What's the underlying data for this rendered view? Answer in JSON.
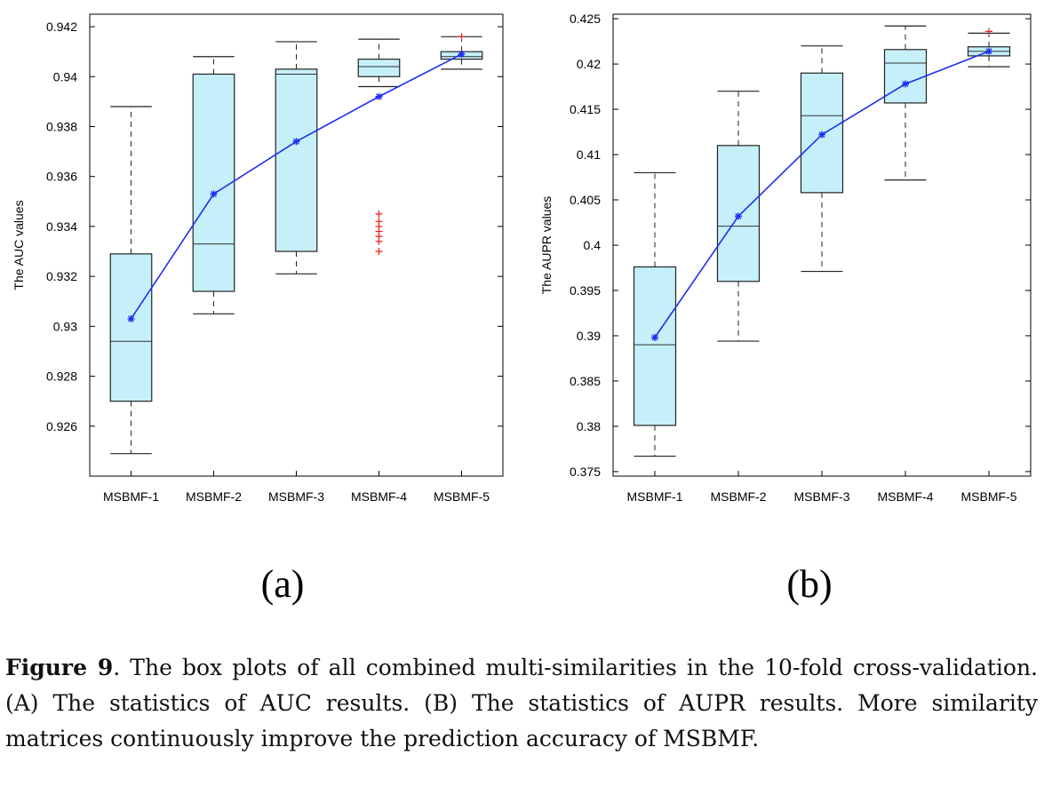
{
  "chart_data": [
    {
      "type": "box",
      "ylabel": "The AUC values",
      "categories": [
        "MSBMF-1",
        "MSBMF-2",
        "MSBMF-3",
        "MSBMF-4",
        "MSBMF-5"
      ],
      "ylim": [
        0.924,
        0.9425
      ],
      "yticks": [
        0.926,
        0.928,
        0.93,
        0.932,
        0.934,
        0.936,
        0.938,
        0.94,
        0.942
      ],
      "ytick_labels": [
        "0.926",
        "0.928",
        "0.93",
        "0.932",
        "0.934",
        "0.936",
        "0.938",
        "0.94",
        "0.942"
      ],
      "boxes": [
        {
          "whisker_low": 0.9249,
          "q1": 0.927,
          "median": 0.9294,
          "q3": 0.9329,
          "whisker_high": 0.9388,
          "outliers": []
        },
        {
          "whisker_low": 0.9305,
          "q1": 0.9314,
          "median": 0.9333,
          "q3": 0.9401,
          "whisker_high": 0.9408,
          "outliers": []
        },
        {
          "whisker_low": 0.9321,
          "q1": 0.933,
          "median": 0.9401,
          "q3": 0.9403,
          "whisker_high": 0.9414,
          "outliers": []
        },
        {
          "whisker_low": 0.9396,
          "q1": 0.94,
          "median": 0.9404,
          "q3": 0.9407,
          "whisker_high": 0.9415,
          "outliers": [
            0.933,
            0.9334,
            0.9336,
            0.9338,
            0.934,
            0.9342,
            0.9345
          ]
        },
        {
          "whisker_low": 0.9403,
          "q1": 0.9407,
          "median": 0.9408,
          "q3": 0.941,
          "whisker_high": 0.9416,
          "outliers": [
            0.9416
          ]
        }
      ],
      "mean_line": [
        0.9303,
        0.9353,
        0.9374,
        0.9392,
        0.9409
      ],
      "box_color": "#c5f0fa",
      "mean_color": "#1f2ef0",
      "outlier_color": "#ee1c1c"
    },
    {
      "type": "box",
      "ylabel": "The AUPR values",
      "categories": [
        "MSBMF-1",
        "MSBMF-2",
        "MSBMF-3",
        "MSBMF-4",
        "MSBMF-5"
      ],
      "ylim": [
        0.3745,
        0.4255
      ],
      "yticks": [
        0.375,
        0.38,
        0.385,
        0.39,
        0.395,
        0.4,
        0.405,
        0.41,
        0.415,
        0.42,
        0.425
      ],
      "ytick_labels": [
        "0.375",
        "0.38",
        "0.385",
        "0.39",
        "0.395",
        "0.4",
        "0.405",
        "0.41",
        "0.415",
        "0.42",
        "0.425"
      ],
      "boxes": [
        {
          "whisker_low": 0.3767,
          "q1": 0.3801,
          "median": 0.389,
          "q3": 0.3976,
          "whisker_high": 0.408,
          "outliers": []
        },
        {
          "whisker_low": 0.3894,
          "q1": 0.396,
          "median": 0.4021,
          "q3": 0.411,
          "whisker_high": 0.417,
          "outliers": []
        },
        {
          "whisker_low": 0.3971,
          "q1": 0.4058,
          "median": 0.4143,
          "q3": 0.419,
          "whisker_high": 0.422,
          "outliers": []
        },
        {
          "whisker_low": 0.4072,
          "q1": 0.4157,
          "median": 0.4201,
          "q3": 0.4216,
          "whisker_high": 0.4242,
          "outliers": []
        },
        {
          "whisker_low": 0.4197,
          "q1": 0.4209,
          "median": 0.4214,
          "q3": 0.4219,
          "whisker_high": 0.4234,
          "outliers": [
            0.4236
          ]
        }
      ],
      "mean_line": [
        0.3898,
        0.4032,
        0.4122,
        0.4178,
        0.4214
      ],
      "box_color": "#c5f0fa",
      "mean_color": "#1f2ef0",
      "outlier_color": "#ee1c1c"
    }
  ],
  "panel_labels": [
    "(a)",
    "(b)"
  ],
  "caption": {
    "label": "Figure 9",
    "text": ".  The box plots of all combined multi-similarities in the 10-fold cross-validation. (A) The statistics of AUC results. (B) The statistics of AUPR results. More similarity matrices continuously improve the prediction accuracy of MSBMF."
  }
}
